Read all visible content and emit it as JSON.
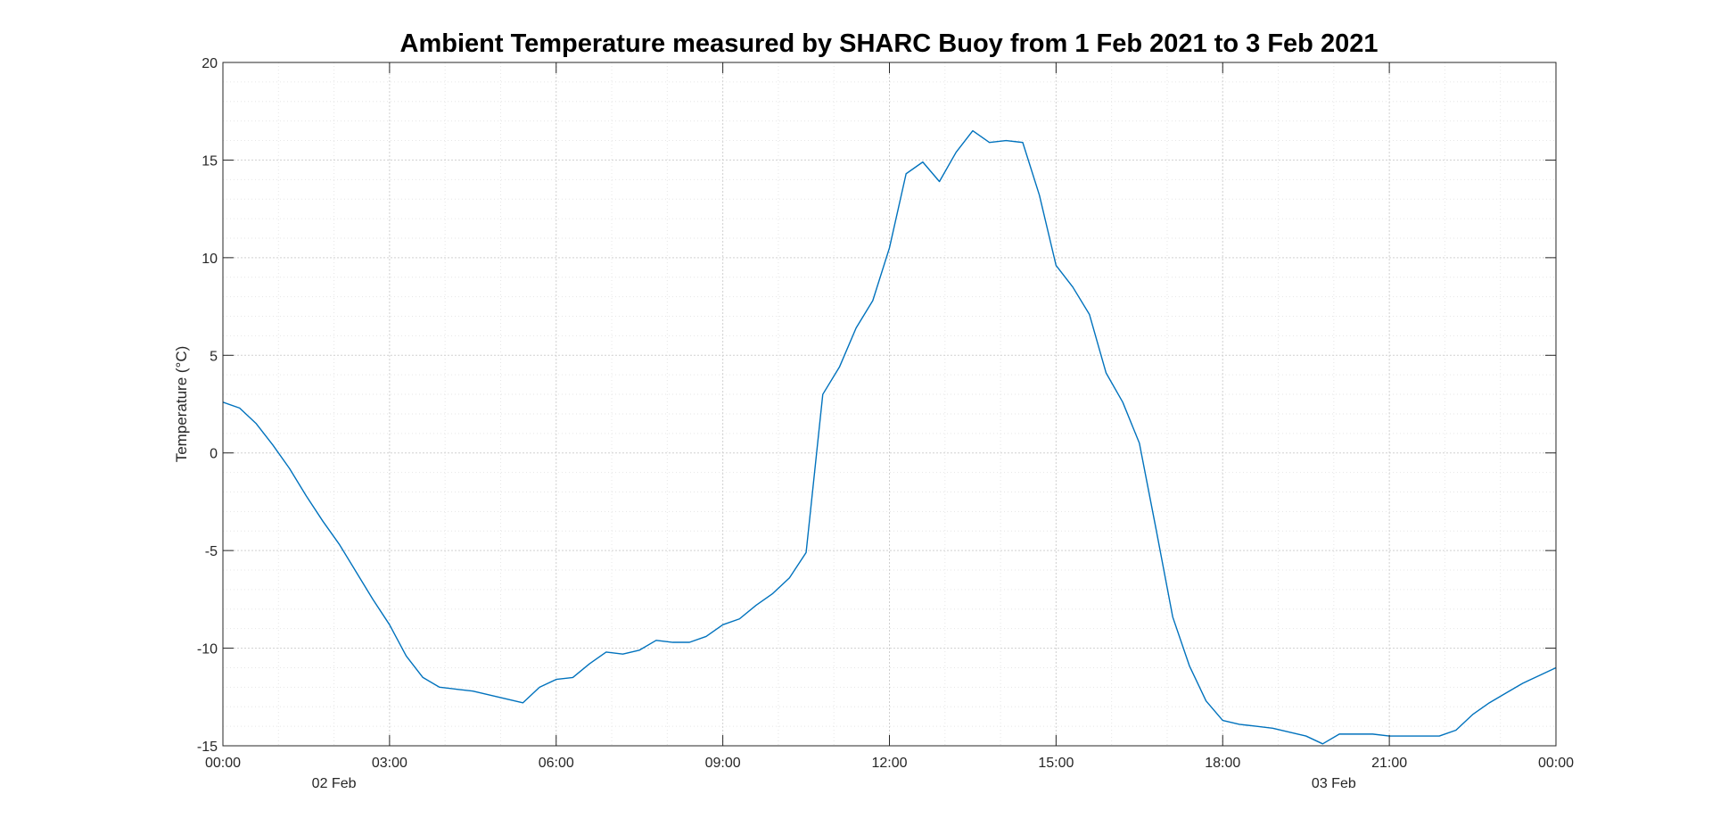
{
  "chart_data": {
    "type": "line",
    "title": "Ambient Temperature measured by SHARC Buoy from 1 Feb 2021 to 3 Feb 2021",
    "xlabel": "",
    "ylabel": "Temperature (°C)",
    "ylim": [
      -15,
      20
    ],
    "yticks": [
      "20",
      "15",
      "10",
      "5",
      "0",
      "-5",
      "-10",
      "-15"
    ],
    "xlim": [
      "2021-02-01 00:00",
      "2021-02-02 00:00"
    ],
    "xticks": [
      "00:00",
      "03:00",
      "06:00",
      "09:00",
      "12:00",
      "15:00",
      "18:00",
      "21:00",
      "00:00"
    ],
    "secondary_xticks": [
      "02 Feb",
      "03 Feb"
    ],
    "grid": true,
    "minor_grid": true,
    "line_color": "#0072BD",
    "series": [
      {
        "x": [
          "00:00",
          "00:18",
          "00:36",
          "00:54",
          "01:12",
          "01:30",
          "01:48",
          "02:06",
          "02:24",
          "02:42",
          "03:00",
          "03:18",
          "03:36",
          "03:54",
          "04:12",
          "04:30",
          "04:48",
          "05:06",
          "05:24",
          "05:42",
          "06:00",
          "06:18",
          "06:36",
          "06:54",
          "07:12",
          "07:30",
          "07:48",
          "08:06",
          "08:24",
          "08:42",
          "09:00",
          "09:18",
          "09:36",
          "09:54",
          "10:12",
          "10:30",
          "10:48",
          "11:06",
          "11:24",
          "11:42",
          "12:00",
          "12:18",
          "12:36",
          "12:54",
          "13:12",
          "13:30",
          "13:48",
          "14:06",
          "14:24",
          "14:42",
          "15:00",
          "15:18",
          "15:36",
          "15:54",
          "16:12",
          "16:30",
          "16:48",
          "17:06",
          "17:24",
          "17:42",
          "18:00",
          "18:18",
          "18:36",
          "18:54",
          "19:12",
          "19:30",
          "19:48",
          "20:06",
          "20:24",
          "20:42",
          "21:00",
          "21:18",
          "21:36",
          "21:54",
          "22:12",
          "22:30",
          "22:48",
          "23:06",
          "23:24",
          "23:42",
          "24:00"
        ],
        "y": [
          2.6,
          2.3,
          1.5,
          0.4,
          -0.8,
          -2.2,
          -3.5,
          -4.7,
          -6.1,
          -7.5,
          -8.8,
          -10.4,
          -11.5,
          -12.0,
          -12.1,
          -12.2,
          -12.4,
          -12.6,
          -12.8,
          -12.0,
          -11.6,
          -11.5,
          -10.8,
          -10.2,
          -10.3,
          -10.1,
          -9.6,
          -9.7,
          -9.7,
          -9.4,
          -8.8,
          -8.5,
          -7.8,
          -7.2,
          -6.4,
          -5.1,
          3.0,
          4.4,
          6.4,
          7.8,
          10.5,
          14.3,
          14.9,
          13.9,
          15.4,
          16.5,
          15.9,
          16.0,
          15.9,
          13.2,
          9.6,
          8.5,
          7.1,
          4.1,
          2.6,
          0.5,
          -3.9,
          -8.4,
          -10.9,
          -12.7,
          -13.7,
          -13.9,
          -14.0,
          -14.1,
          -14.3,
          -14.5,
          -14.9,
          -14.4,
          -14.4,
          -14.4,
          -14.5,
          -14.5,
          -14.5,
          -14.5,
          -14.2,
          -13.4,
          -12.8,
          -12.3,
          -11.8,
          -11.4,
          -11.0
        ]
      }
    ]
  }
}
